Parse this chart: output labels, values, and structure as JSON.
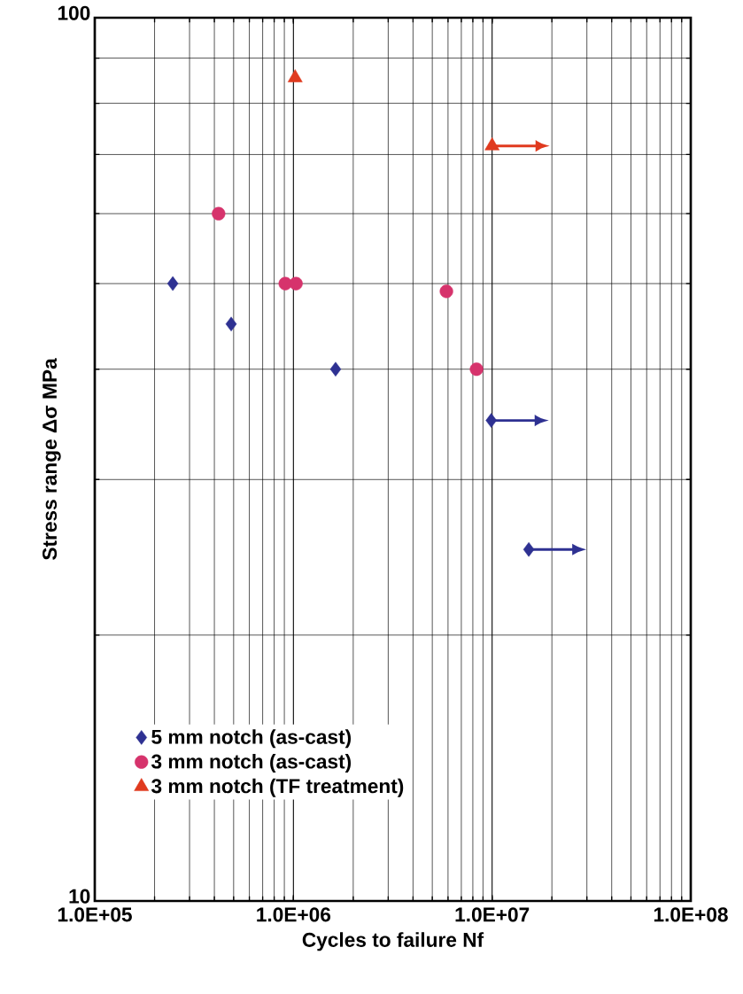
{
  "chart_data": {
    "type": "scatter",
    "xlabel": "Cycles to failure    Nf",
    "ylabel": "Stress range  Δσ  MPa",
    "log": "xy",
    "grid": true,
    "legend": "bottom left",
    "xlim": [
      100000,
      100000000
    ],
    "ylim": [
      10,
      100
    ],
    "xticks": [
      {
        "value": 100000,
        "label": "1.0E+05"
      },
      {
        "value": 1000000,
        "label": "1.0E+06"
      },
      {
        "value": 10000000,
        "label": "1.0E+07"
      },
      {
        "value": 100000000,
        "label": "1.0E+08"
      }
    ],
    "yticks": [
      10,
      100
    ],
    "series": [
      {
        "name": "5 mm notch (as-cast)",
        "color": "#2e3192",
        "marker": "diamond",
        "x": [
          247000,
          486000,
          1630000,
          9900000,
          15300000
        ],
        "values": [
          50,
          45,
          40,
          35,
          25
        ]
      },
      {
        "name": "3 mm notch (as-cast)",
        "color": "#d6336c",
        "marker": "circle",
        "x": [
          420000,
          910000,
          1030000,
          5890000,
          8350000
        ],
        "values": [
          60,
          50,
          50,
          49,
          40
        ]
      },
      {
        "name": "3 mm notch (TF treatment)",
        "color": "#e03a1e",
        "marker": "triangle",
        "x": [
          1020000,
          10000000
        ],
        "values": [
          85.5,
          71.6
        ]
      }
    ]
  }
}
